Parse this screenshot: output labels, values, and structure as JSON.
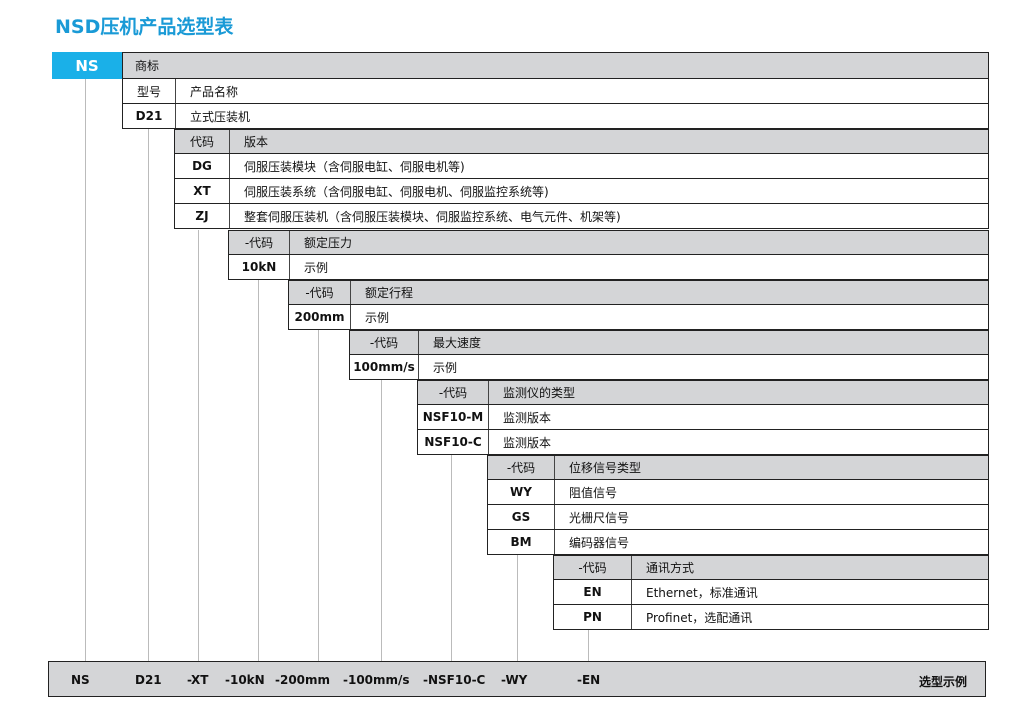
{
  "title": "NSD压机产品选型表",
  "brand": {
    "code": "NS",
    "label": "商标"
  },
  "groups": [
    {
      "header": [
        "型号",
        "产品名称"
      ],
      "rows": [
        [
          "D21",
          "立式压装机"
        ]
      ]
    },
    {
      "header": [
        "代码",
        "版本"
      ],
      "rows": [
        [
          "DG",
          "伺服压装模块（含伺服电缸、伺服电机等)"
        ],
        [
          "XT",
          "伺服压装系统（含伺服电缸、伺服电机、伺服监控系统等)"
        ],
        [
          "ZJ",
          "整套伺服压装机（含伺服压装模块、伺服监控系统、电气元件、机架等)"
        ]
      ]
    },
    {
      "header": [
        "-代码",
        "额定压力"
      ],
      "rows": [
        [
          "10kN",
          "示例"
        ]
      ]
    },
    {
      "header": [
        "-代码",
        "额定行程"
      ],
      "rows": [
        [
          "200mm",
          "示例"
        ]
      ]
    },
    {
      "header": [
        "-代码",
        "最大速度"
      ],
      "rows": [
        [
          "100mm/s",
          "示例"
        ]
      ]
    },
    {
      "header": [
        "-代码",
        "监测仪的类型"
      ],
      "rows": [
        [
          "NSF10-M",
          "监测版本"
        ],
        [
          "NSF10-C",
          "监测版本"
        ]
      ]
    },
    {
      "header": [
        "-代码",
        "位移信号类型"
      ],
      "rows": [
        [
          "WY",
          "阻值信号"
        ],
        [
          "GS",
          "光栅尺信号"
        ],
        [
          "BM",
          "编码器信号"
        ]
      ]
    },
    {
      "header": [
        "-代码",
        "通讯方式"
      ],
      "rows": [
        [
          "EN",
          "Ethernet，标准通讯"
        ],
        [
          "PN",
          "Profinet，选配通讯"
        ]
      ]
    }
  ],
  "example": {
    "parts": [
      "NS",
      "D21",
      "-XT",
      "-10kN",
      "-200mm",
      "-100mm/s",
      "-NSF10-C",
      "-WY",
      "-EN"
    ],
    "label": "选型示例"
  },
  "colors": {
    "accent": "#1ab0e8",
    "title": "#1a9ad6",
    "header_bg": "#d4d5d7"
  }
}
